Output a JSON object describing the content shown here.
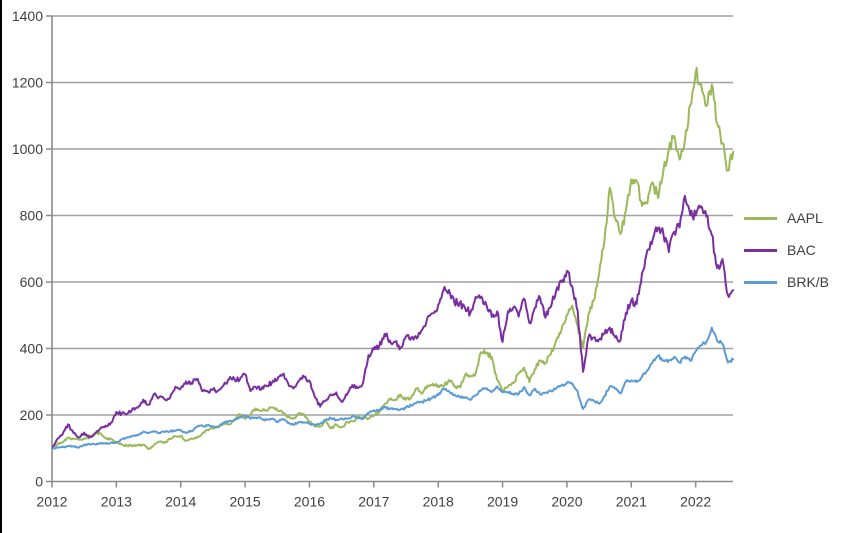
{
  "page": {
    "background": "#FFFFFF",
    "left_edge_color": "#000000"
  },
  "colors": {
    "grid_line": "#A0A0A0",
    "axis_line": "#8A8A8A",
    "axis_text": "#3F3F3F",
    "aapl_green": "#9BB95A",
    "bac_purple": "#7A2FA0",
    "brkb_blue": "#5B9BD5"
  },
  "legend": {
    "position": "right",
    "items": [
      {
        "label": "AAPL",
        "color": "#9BB95A"
      },
      {
        "label": "BAC",
        "color": "#7A2FA0"
      },
      {
        "label": "BRK/B",
        "color": "#5B9BD5"
      }
    ]
  },
  "chart_data": {
    "type": "line",
    "title": "",
    "xlabel": "",
    "ylabel": "",
    "grid": {
      "horizontal": true,
      "vertical": false
    },
    "legend_position": "right",
    "x_axis": {
      "tick_labels": [
        "2012",
        "2013",
        "2014",
        "2015",
        "2016",
        "2017",
        "2018",
        "2019",
        "2020",
        "2021",
        "2022"
      ],
      "start_year": 2012,
      "end_year": 2022.58
    },
    "y_axis": {
      "ticks": [
        0,
        200,
        400,
        600,
        800,
        1000,
        1200,
        1400
      ],
      "range": [
        0,
        1400
      ]
    },
    "x_start_year": 2012,
    "x_step_years": 0.0833333,
    "x_note": "values are indexed performance (start = 100), one point per month from Jan 2012 through Jul 2022",
    "series": [
      {
        "name": "AAPL",
        "color": "#9BB95A",
        "values": [
          100,
          112,
          118,
          131,
          128,
          126,
          128,
          133,
          145,
          146,
          130,
          128,
          116,
          111,
          108,
          108,
          108,
          110,
          97,
          110,
          119,
          116,
          128,
          136,
          137,
          122,
          129,
          131,
          144,
          155,
          159,
          163,
          175,
          172,
          185,
          203,
          189,
          200,
          220,
          213,
          214,
          223,
          214,
          207,
          193,
          189,
          204,
          202,
          180,
          166,
          165,
          186,
          160,
          171,
          163,
          178,
          181,
          193,
          194,
          189,
          198,
          208,
          234,
          246,
          246,
          261,
          246,
          254,
          280,
          264,
          289,
          294,
          289,
          286,
          305,
          287,
          283,
          320,
          317,
          325,
          389,
          386,
          374,
          305,
          270,
          285,
          296,
          325,
          343,
          299,
          338,
          364,
          357,
          383,
          425,
          457,
          502,
          529,
          467,
          400,
          502,
          544,
          624,
          727,
          883,
          792,
          745,
          814,
          908,
          903,
          829,
          836,
          899,
          852,
          937,
          998,
          1039,
          968,
          1025,
          1131,
          1230,
          1196,
          1129,
          1194,
          1078,
          1018,
          935,
          992
        ]
      },
      {
        "name": "BAC",
        "color": "#7A2FA0",
        "values": [
          100,
          128,
          143,
          172,
          146,
          132,
          147,
          132,
          144,
          159,
          168,
          177,
          209,
          204,
          203,
          219,
          222,
          246,
          231,
          263,
          254,
          248,
          251,
          285,
          280,
          301,
          297,
          309,
          272,
          272,
          276,
          274,
          289,
          307,
          309,
          306,
          322,
          272,
          284,
          277,
          287,
          297,
          306,
          322,
          296,
          280,
          302,
          314,
          303,
          254,
          225,
          243,
          262,
          268,
          239,
          261,
          290,
          281,
          297,
          380,
          397,
          407,
          444,
          424,
          420,
          403,
          436,
          434,
          430,
          456,
          493,
          506,
          531,
          577,
          576,
          539,
          538,
          522,
          507,
          555,
          556,
          530,
          495,
          512,
          420,
          512,
          523,
          496,
          550,
          477,
          522,
          553,
          493,
          525,
          575,
          600,
          633,
          587,
          513,
          330,
          433,
          433,
          427,
          446,
          463,
          433,
          426,
          507,
          545,
          534,
          626,
          696,
          729,
          763,
          742,
          690,
          751,
          764,
          859,
          801,
          800,
          828,
          797,
          741,
          642,
          669,
          560,
          575
        ]
      },
      {
        "name": "BRK/B",
        "color": "#5B9BD5",
        "values": [
          100,
          102,
          103,
          106,
          106,
          102,
          109,
          112,
          112,
          116,
          113,
          117,
          118,
          127,
          133,
          137,
          139,
          150,
          147,
          152,
          146,
          149,
          151,
          153,
          155,
          146,
          152,
          164,
          168,
          168,
          166,
          165,
          178,
          181,
          185,
          194,
          197,
          189,
          193,
          189,
          185,
          188,
          179,
          188,
          176,
          171,
          179,
          177,
          173,
          170,
          174,
          186,
          191,
          185,
          190,
          189,
          197,
          190,
          189,
          206,
          214,
          215,
          224,
          218,
          217,
          217,
          222,
          229,
          237,
          240,
          245,
          253,
          260,
          280,
          272,
          261,
          254,
          251,
          245,
          259,
          274,
          281,
          269,
          286,
          268,
          269,
          264,
          263,
          284,
          259,
          279,
          262,
          267,
          273,
          279,
          289,
          297,
          294,
          270,
          218,
          246,
          243,
          234,
          257,
          286,
          279,
          265,
          300,
          304,
          299,
          315,
          335,
          360,
          379,
          364,
          365,
          375,
          358,
          376,
          363,
          392,
          409,
          420,
          463,
          423,
          414,
          358,
          367
        ]
      }
    ]
  }
}
